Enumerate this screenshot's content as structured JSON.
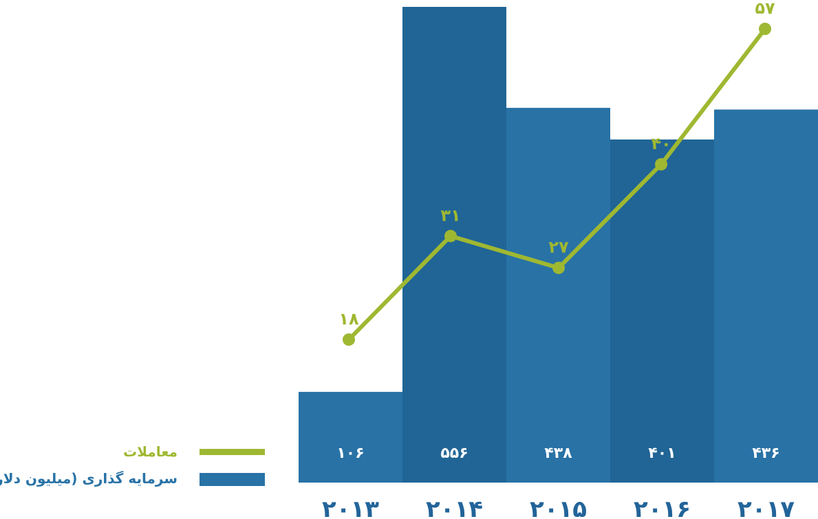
{
  "chart_data": {
    "type": "bar",
    "categories": [
      "۲۰۱۳",
      "۲۰۱۴",
      "۲۰۱۵",
      "۲۰۱۶",
      "۲۰۱۷"
    ],
    "series": [
      {
        "name": "سرمایه گذاری (میلیون دلار)",
        "kind": "bar",
        "values": [
          106,
          556,
          438,
          401,
          436
        ],
        "value_labels": [
          "۱۰۶",
          "۵۵۶",
          "۴۳۸",
          "۴۰۱",
          "۴۳۶"
        ]
      },
      {
        "name": "معاملات",
        "kind": "line",
        "values": [
          18,
          31,
          27,
          40,
          57
        ],
        "value_labels": [
          "۱۸",
          "۳۱",
          "۲۷",
          "۴۰",
          "۵۷"
        ]
      }
    ],
    "legend_position": "left",
    "grid": false
  },
  "colors": {
    "bar_light": "#2872a6",
    "bar_dark": "#206596",
    "line": "#9fb832",
    "x_label": "#22649a"
  }
}
